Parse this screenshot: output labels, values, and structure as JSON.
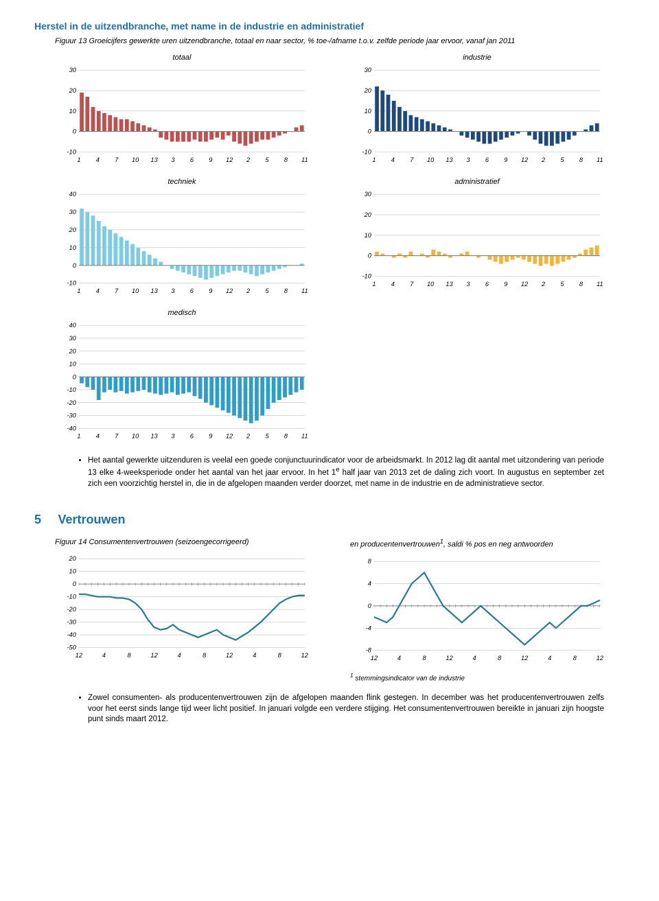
{
  "pageTitle": "Herstel in de uitzendbranche, met name in de industrie en administratief",
  "fig13Caption": "Figuur 13 Groeicijfers gewerkte uren uitzendbranche, totaal en naar sector, % toe-/afname t.o.v. zelfde periode jaar ervoor, vanaf jan 2011",
  "xTicks": [
    "1",
    "4",
    "7",
    "10",
    "13",
    "3",
    "6",
    "9",
    "12",
    "2",
    "5",
    "8",
    "11"
  ],
  "chartStyle": {
    "grid_color": "#bfbfbf",
    "axis_color": "#808080",
    "bg": "#ffffff",
    "tick_font_size": 9,
    "title_font_size": 11
  },
  "bars": {
    "totaal": {
      "title": "totaal",
      "color": "#c0504d",
      "ymin": -10,
      "ymax": 30,
      "ystep": 10,
      "values": [
        19,
        17,
        12,
        10,
        9,
        8,
        7,
        6,
        6,
        5,
        4,
        3,
        2,
        1,
        -3,
        -4,
        -5,
        -5,
        -5,
        -5,
        -4,
        -5,
        -5,
        -4,
        -3,
        -4,
        -2,
        -5,
        -6,
        -7,
        -6,
        -5,
        -4,
        -4,
        -3,
        -2,
        -1,
        0,
        2,
        3
      ]
    },
    "industrie": {
      "title": "industrie",
      "color": "#1f497d",
      "ymin": -10,
      "ymax": 30,
      "ystep": 10,
      "values": [
        22,
        20,
        18,
        15,
        12,
        10,
        8,
        7,
        6,
        5,
        4,
        3,
        2,
        1,
        0,
        -2,
        -3,
        -4,
        -5,
        -6,
        -6,
        -5,
        -4,
        -3,
        -2,
        -1,
        0,
        -2,
        -4,
        -6,
        -7,
        -7,
        -6,
        -5,
        -4,
        -2,
        0,
        1,
        3,
        4
      ]
    },
    "techniek": {
      "title": "techniek",
      "color": "#7ccce5",
      "ymin": -10,
      "ymax": 40,
      "ystep": 10,
      "values": [
        32,
        30,
        28,
        25,
        22,
        20,
        18,
        16,
        14,
        12,
        10,
        8,
        6,
        4,
        2,
        0,
        -2,
        -3,
        -4,
        -5,
        -6,
        -7,
        -8,
        -7,
        -6,
        -5,
        -4,
        -3,
        -3,
        -4,
        -5,
        -6,
        -5,
        -4,
        -3,
        -2,
        -1,
        0,
        0,
        1
      ]
    },
    "administratief": {
      "title": "administratief",
      "color": "#f6b436",
      "ymin": -10,
      "ymax": 30,
      "ystep": 10,
      "values": [
        2,
        1,
        0,
        -1,
        1,
        -1,
        2,
        0,
        1,
        -1,
        3,
        2,
        1,
        -1,
        0,
        1,
        2,
        0,
        -1,
        0,
        -2,
        -3,
        -4,
        -3,
        -2,
        -1,
        -2,
        -3,
        -4,
        -5,
        -4,
        -5,
        -4,
        -3,
        -2,
        -1,
        1,
        3,
        4,
        5
      ]
    },
    "medisch": {
      "title": "medisch",
      "color": "#2e9ec9",
      "ymin": -40,
      "ymax": 40,
      "ystep": 10,
      "values": [
        -5,
        -8,
        -10,
        -18,
        -12,
        -10,
        -12,
        -11,
        -13,
        -12,
        -11,
        -10,
        -12,
        -13,
        -14,
        -13,
        -12,
        -14,
        -13,
        -12,
        -15,
        -17,
        -20,
        -22,
        -24,
        -26,
        -28,
        -30,
        -32,
        -34,
        -36,
        -34,
        -30,
        -25,
        -20,
        -18,
        -16,
        -14,
        -12,
        -10
      ]
    }
  },
  "bullet1": "Het aantal gewerkte uitzenduren is veelal een goede conjunctuurindicator voor de arbeidsmarkt. In 2012 lag dit aantal met uitzondering van periode 13 elke 4-weeksperiode onder het aantal van het jaar ervoor. In het 1",
  "bullet1_sup": "e",
  "bullet1_cont": " half jaar van 2013 zet de daling zich voort. In augustus en september zet zich een voorzichtig herstel in, die in de afgelopen maanden verder doorzet, met name in de industrie en de administratieve sector.",
  "sectionNum": "5",
  "sectionTitle": "Vertrouwen",
  "fig14_left_caption": "Figuur 14 Consumentenvertrouwen (seizoengecorrigeerd)",
  "fig14_right_caption_a": "en producentenvertrouwen",
  "fig14_right_caption_sup": "1",
  "fig14_right_caption_b": ", saldi % pos en neg antwoorden",
  "lineXTicks": [
    "12",
    "4",
    "8",
    "12",
    "4",
    "8",
    "12",
    "4",
    "8",
    "12"
  ],
  "lineCharts": {
    "consument": {
      "color": "#2e7d8f",
      "ymin": -50,
      "ymax": 20,
      "ystep": 10,
      "values": [
        -8,
        -8,
        -9,
        -10,
        -10,
        -10,
        -11,
        -11,
        -12,
        -15,
        -20,
        -28,
        -34,
        -36,
        -35,
        -32,
        -36,
        -38,
        -40,
        -42,
        -40,
        -38,
        -36,
        -40,
        -42,
        -44,
        -41,
        -38,
        -34,
        -30,
        -25,
        -20,
        -15,
        -12,
        -10,
        -9,
        -9
      ]
    },
    "producent": {
      "color": "#2e7d8f",
      "ymin": -8,
      "ymax": 8,
      "ystep": 4,
      "values": [
        -2,
        -2.5,
        -3,
        -2,
        0,
        2,
        4,
        5,
        6,
        4,
        2,
        0,
        -1,
        -2,
        -3,
        -2,
        -1,
        0,
        -1,
        -2,
        -3,
        -4,
        -5,
        -6,
        -7,
        -6,
        -5,
        -4,
        -3,
        -4,
        -3,
        -2,
        -1,
        0,
        0,
        0.5,
        1
      ]
    }
  },
  "footnote1_sup": "1",
  "footnote1": " stemmingsindicator van de industrie",
  "bullet2": "Zowel consumenten- als producentenvertrouwen zijn de afgelopen maanden flink gestegen. In december was het producentenvertrouwen zelfs voor het eerst sinds lange tijd weer licht positief. In januari volgde een verdere stijging. Het consumentenvertrouwen bereikte in januari zijn hoogste punt sinds maart 2012."
}
